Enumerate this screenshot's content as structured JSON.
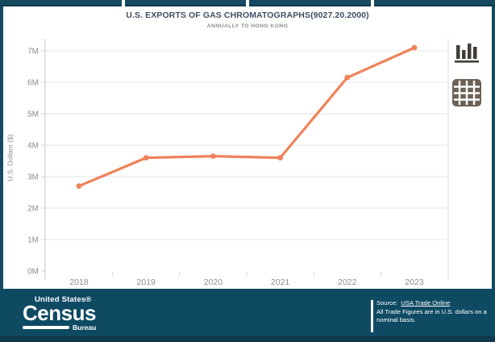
{
  "header": {
    "title": "U.S. EXPORTS OF GAS CHROMATOGRAPHS(9027.20.2000)",
    "subtitle": "ANNUALLY TO HONG KONG"
  },
  "chart_data": {
    "type": "line",
    "title": "U.S. EXPORTS OF GAS CHROMATOGRAPHS(9027.20.2000)",
    "subtitle": "ANNUALLY TO HONG KONG",
    "x": [
      "2018",
      "2019",
      "2020",
      "2021",
      "2022",
      "2023"
    ],
    "series": [
      {
        "name": "U.S. exports of gas chromatographs to Hong Kong",
        "values_usd": [
          2700000,
          3600000,
          3650000,
          3600000,
          6150000,
          7100000
        ]
      }
    ],
    "ylabel": "U.S. Dollars ($)",
    "yticks": [
      "0M",
      "1M",
      "2M",
      "3M",
      "4M",
      "5M",
      "6M",
      "7M"
    ],
    "ylim_usd": [
      0,
      7400000
    ],
    "grid": "horizontal",
    "legend": "none",
    "line_color": "#f0825a",
    "marker": "circle",
    "axis_text_color": "#8c8c8c"
  },
  "view_toolbar": {
    "icons": [
      {
        "name": "bar-chart-icon",
        "color": "#413d36"
      },
      {
        "name": "table-icon",
        "color": "#6b6156"
      }
    ]
  },
  "footer": {
    "logo": {
      "top": "United States®",
      "main": "Census",
      "sub": "Bureau"
    },
    "source": {
      "label": "Source:",
      "link": "USA Trade Online"
    },
    "note": [
      "All Trade Figures are in U.S. dollars on a",
      "nominal basis."
    ],
    "background": "#0f4a63"
  },
  "colors": {
    "navy_tabs_border": "#154a61",
    "gridline": "#ebebeb",
    "axis_line": "#cfcfcf",
    "title_text": "#3f4e63"
  }
}
